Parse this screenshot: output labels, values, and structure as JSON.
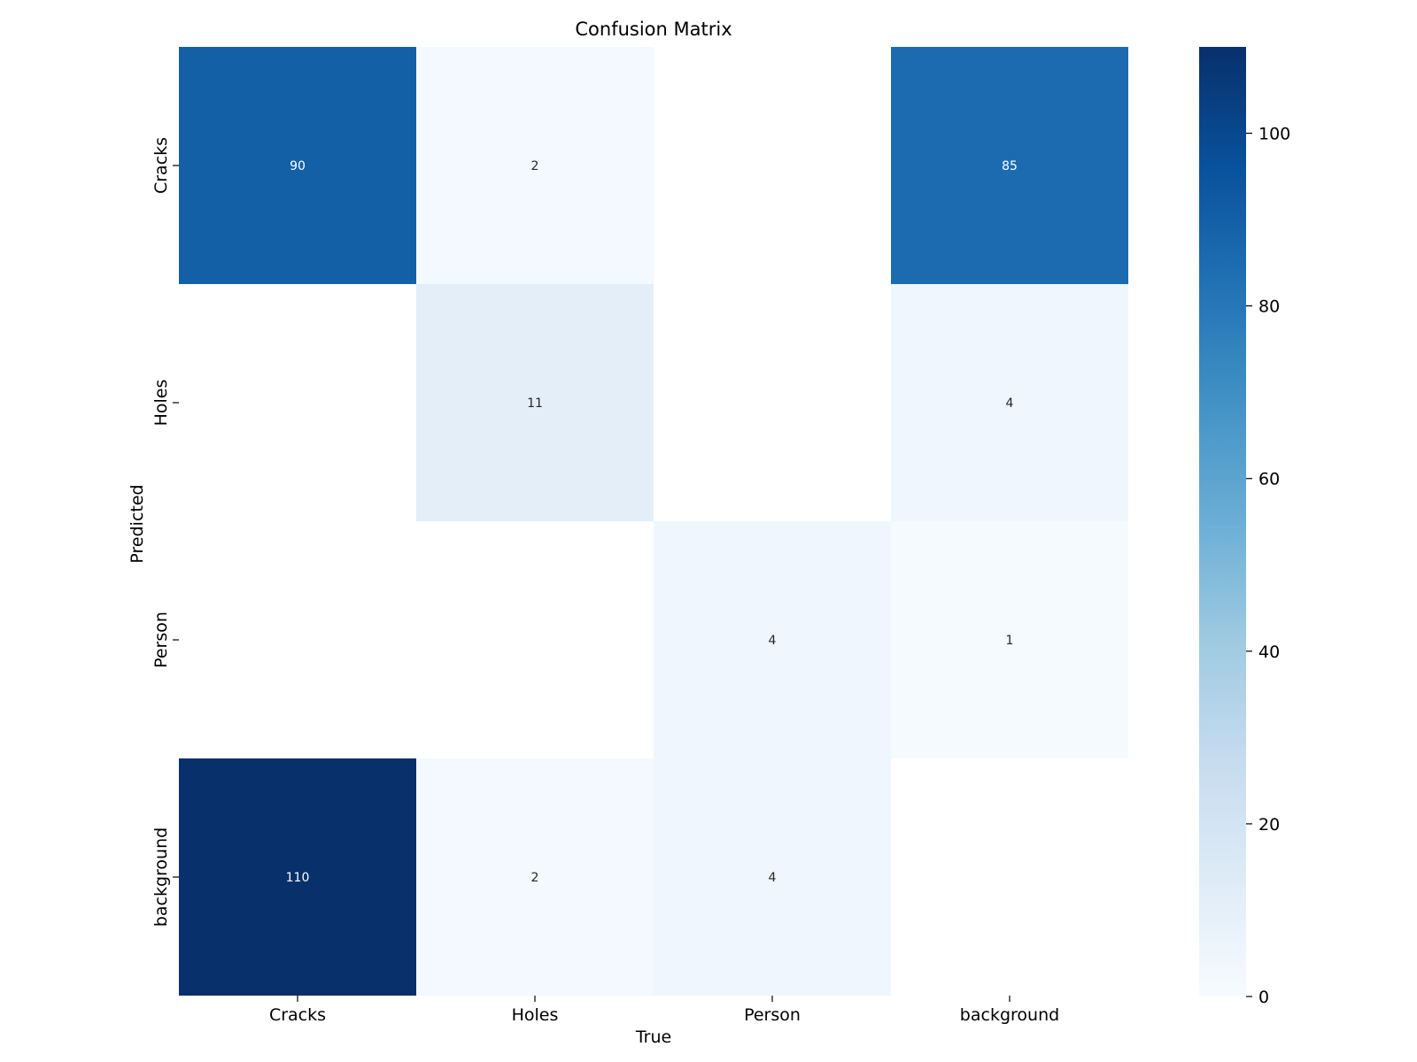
{
  "chart_data": {
    "type": "heatmap",
    "title": "Confusion Matrix",
    "xlabel": "True",
    "ylabel": "Predicted",
    "x_categories": [
      "Cracks",
      "Holes",
      "Person",
      "background"
    ],
    "y_categories": [
      "Cracks",
      "Holes",
      "Person",
      "background"
    ],
    "values": [
      [
        90,
        2,
        null,
        85
      ],
      [
        null,
        11,
        null,
        4
      ],
      [
        null,
        null,
        4,
        1
      ],
      [
        110,
        2,
        4,
        null
      ]
    ],
    "colorbar": {
      "min": 0,
      "max": 110,
      "ticks": [
        0,
        20,
        40,
        60,
        80,
        100
      ],
      "colormap": "Blues"
    },
    "grid": false
  }
}
